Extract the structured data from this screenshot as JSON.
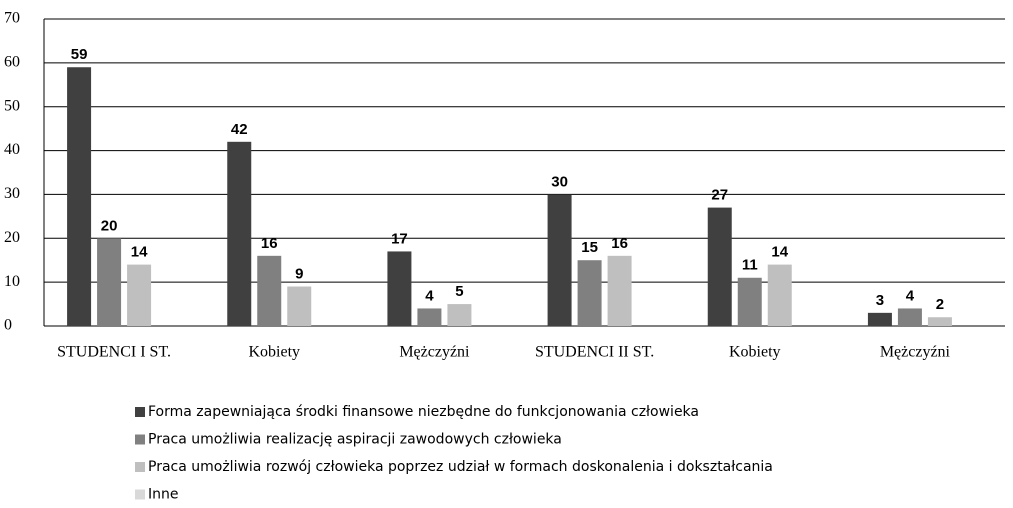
{
  "chart_data": {
    "type": "bar",
    "categories": [
      "STUDENCI I ST.",
      "Kobiety",
      "Mężczyźni",
      "STUDENCI II ST.",
      "Kobiety",
      "Mężczyźni"
    ],
    "series": [
      {
        "name": "Forma zapewniająca środki finansowe niezbędne do funkcjonowania człowieka",
        "color": "#404040",
        "values": [
          59,
          42,
          17,
          30,
          27,
          3
        ]
      },
      {
        "name": "Praca umożliwia realizację aspiracji zawodowych człowieka",
        "color": "#808080",
        "values": [
          20,
          16,
          4,
          15,
          11,
          4
        ]
      },
      {
        "name": "Praca umożliwia rozwój człowieka poprzez udział w formach doskonalenia i dokształcania",
        "color": "#bfbfbf",
        "values": [
          14,
          9,
          5,
          16,
          14,
          2
        ]
      },
      {
        "name": "Inne",
        "color": "#d9d9d9",
        "values": [
          null,
          null,
          null,
          null,
          null,
          null
        ]
      }
    ],
    "ylim": [
      0,
      70
    ],
    "yticks": [
      0,
      10,
      20,
      30,
      40,
      50,
      60,
      70
    ],
    "grid": true,
    "legend": "bottom"
  }
}
